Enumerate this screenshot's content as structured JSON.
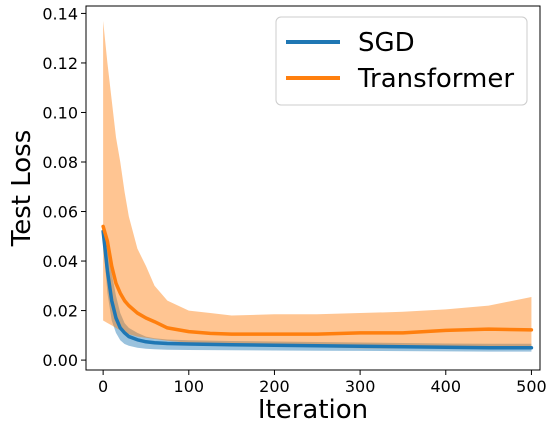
{
  "chart_data": {
    "type": "line",
    "xlabel": "Iteration",
    "ylabel": "Test Loss",
    "xlim": [
      -20,
      510
    ],
    "ylim": [
      -0.004,
      0.143
    ],
    "xticks": [
      0,
      100,
      200,
      300,
      400,
      500
    ],
    "yticks": [
      0.0,
      0.02,
      0.04,
      0.06,
      0.08,
      0.1,
      0.12,
      0.14
    ],
    "xtick_labels": [
      "0",
      "100",
      "200",
      "300",
      "400",
      "500"
    ],
    "ytick_labels": [
      "0.00",
      "0.02",
      "0.04",
      "0.06",
      "0.08",
      "0.10",
      "0.12",
      "0.14"
    ],
    "legend_position": "top-right",
    "grid": false,
    "series": [
      {
        "name": "SGD",
        "color": "#1f77b4",
        "band_color": "#1f77b4",
        "x": [
          0,
          5,
          10,
          15,
          20,
          25,
          30,
          40,
          50,
          60,
          75,
          100,
          150,
          200,
          250,
          300,
          350,
          400,
          450,
          500
        ],
        "y": [
          0.052,
          0.036,
          0.024,
          0.017,
          0.013,
          0.011,
          0.0095,
          0.0082,
          0.0074,
          0.007,
          0.0067,
          0.0065,
          0.0062,
          0.006,
          0.0058,
          0.0056,
          0.0054,
          0.0052,
          0.005,
          0.005
        ],
        "upper": [
          0.055,
          0.045,
          0.035,
          0.026,
          0.019,
          0.015,
          0.013,
          0.011,
          0.0095,
          0.0088,
          0.0083,
          0.008,
          0.0077,
          0.0075,
          0.0073,
          0.0071,
          0.0069,
          0.0067,
          0.0066,
          0.0066
        ],
        "lower": [
          0.048,
          0.027,
          0.016,
          0.011,
          0.008,
          0.0065,
          0.0058,
          0.005,
          0.0046,
          0.0044,
          0.0042,
          0.0041,
          0.004,
          0.0039,
          0.0038,
          0.0037,
          0.0036,
          0.0035,
          0.0034,
          0.0034
        ]
      },
      {
        "name": "Transformer",
        "color": "#ff7f0e",
        "band_color": "#ff7f0e",
        "x": [
          0,
          5,
          10,
          15,
          20,
          25,
          30,
          40,
          50,
          60,
          75,
          100,
          125,
          150,
          200,
          250,
          300,
          350,
          400,
          450,
          500
        ],
        "y": [
          0.054,
          0.048,
          0.038,
          0.031,
          0.027,
          0.024,
          0.022,
          0.019,
          0.017,
          0.0155,
          0.013,
          0.0115,
          0.0108,
          0.0105,
          0.0105,
          0.0105,
          0.011,
          0.011,
          0.012,
          0.0125,
          0.0122
        ],
        "upper": [
          0.137,
          0.12,
          0.105,
          0.09,
          0.08,
          0.068,
          0.058,
          0.045,
          0.038,
          0.03,
          0.024,
          0.02,
          0.019,
          0.018,
          0.0185,
          0.0185,
          0.019,
          0.0195,
          0.0205,
          0.022,
          0.0255
        ],
        "lower": [
          0.016,
          0.015,
          0.014,
          0.013,
          0.012,
          0.011,
          0.0105,
          0.0095,
          0.009,
          0.0085,
          0.0078,
          0.007,
          0.0065,
          0.006,
          0.0055,
          0.0052,
          0.0048,
          0.0047,
          0.0047,
          0.0047,
          0.0047
        ]
      }
    ]
  }
}
